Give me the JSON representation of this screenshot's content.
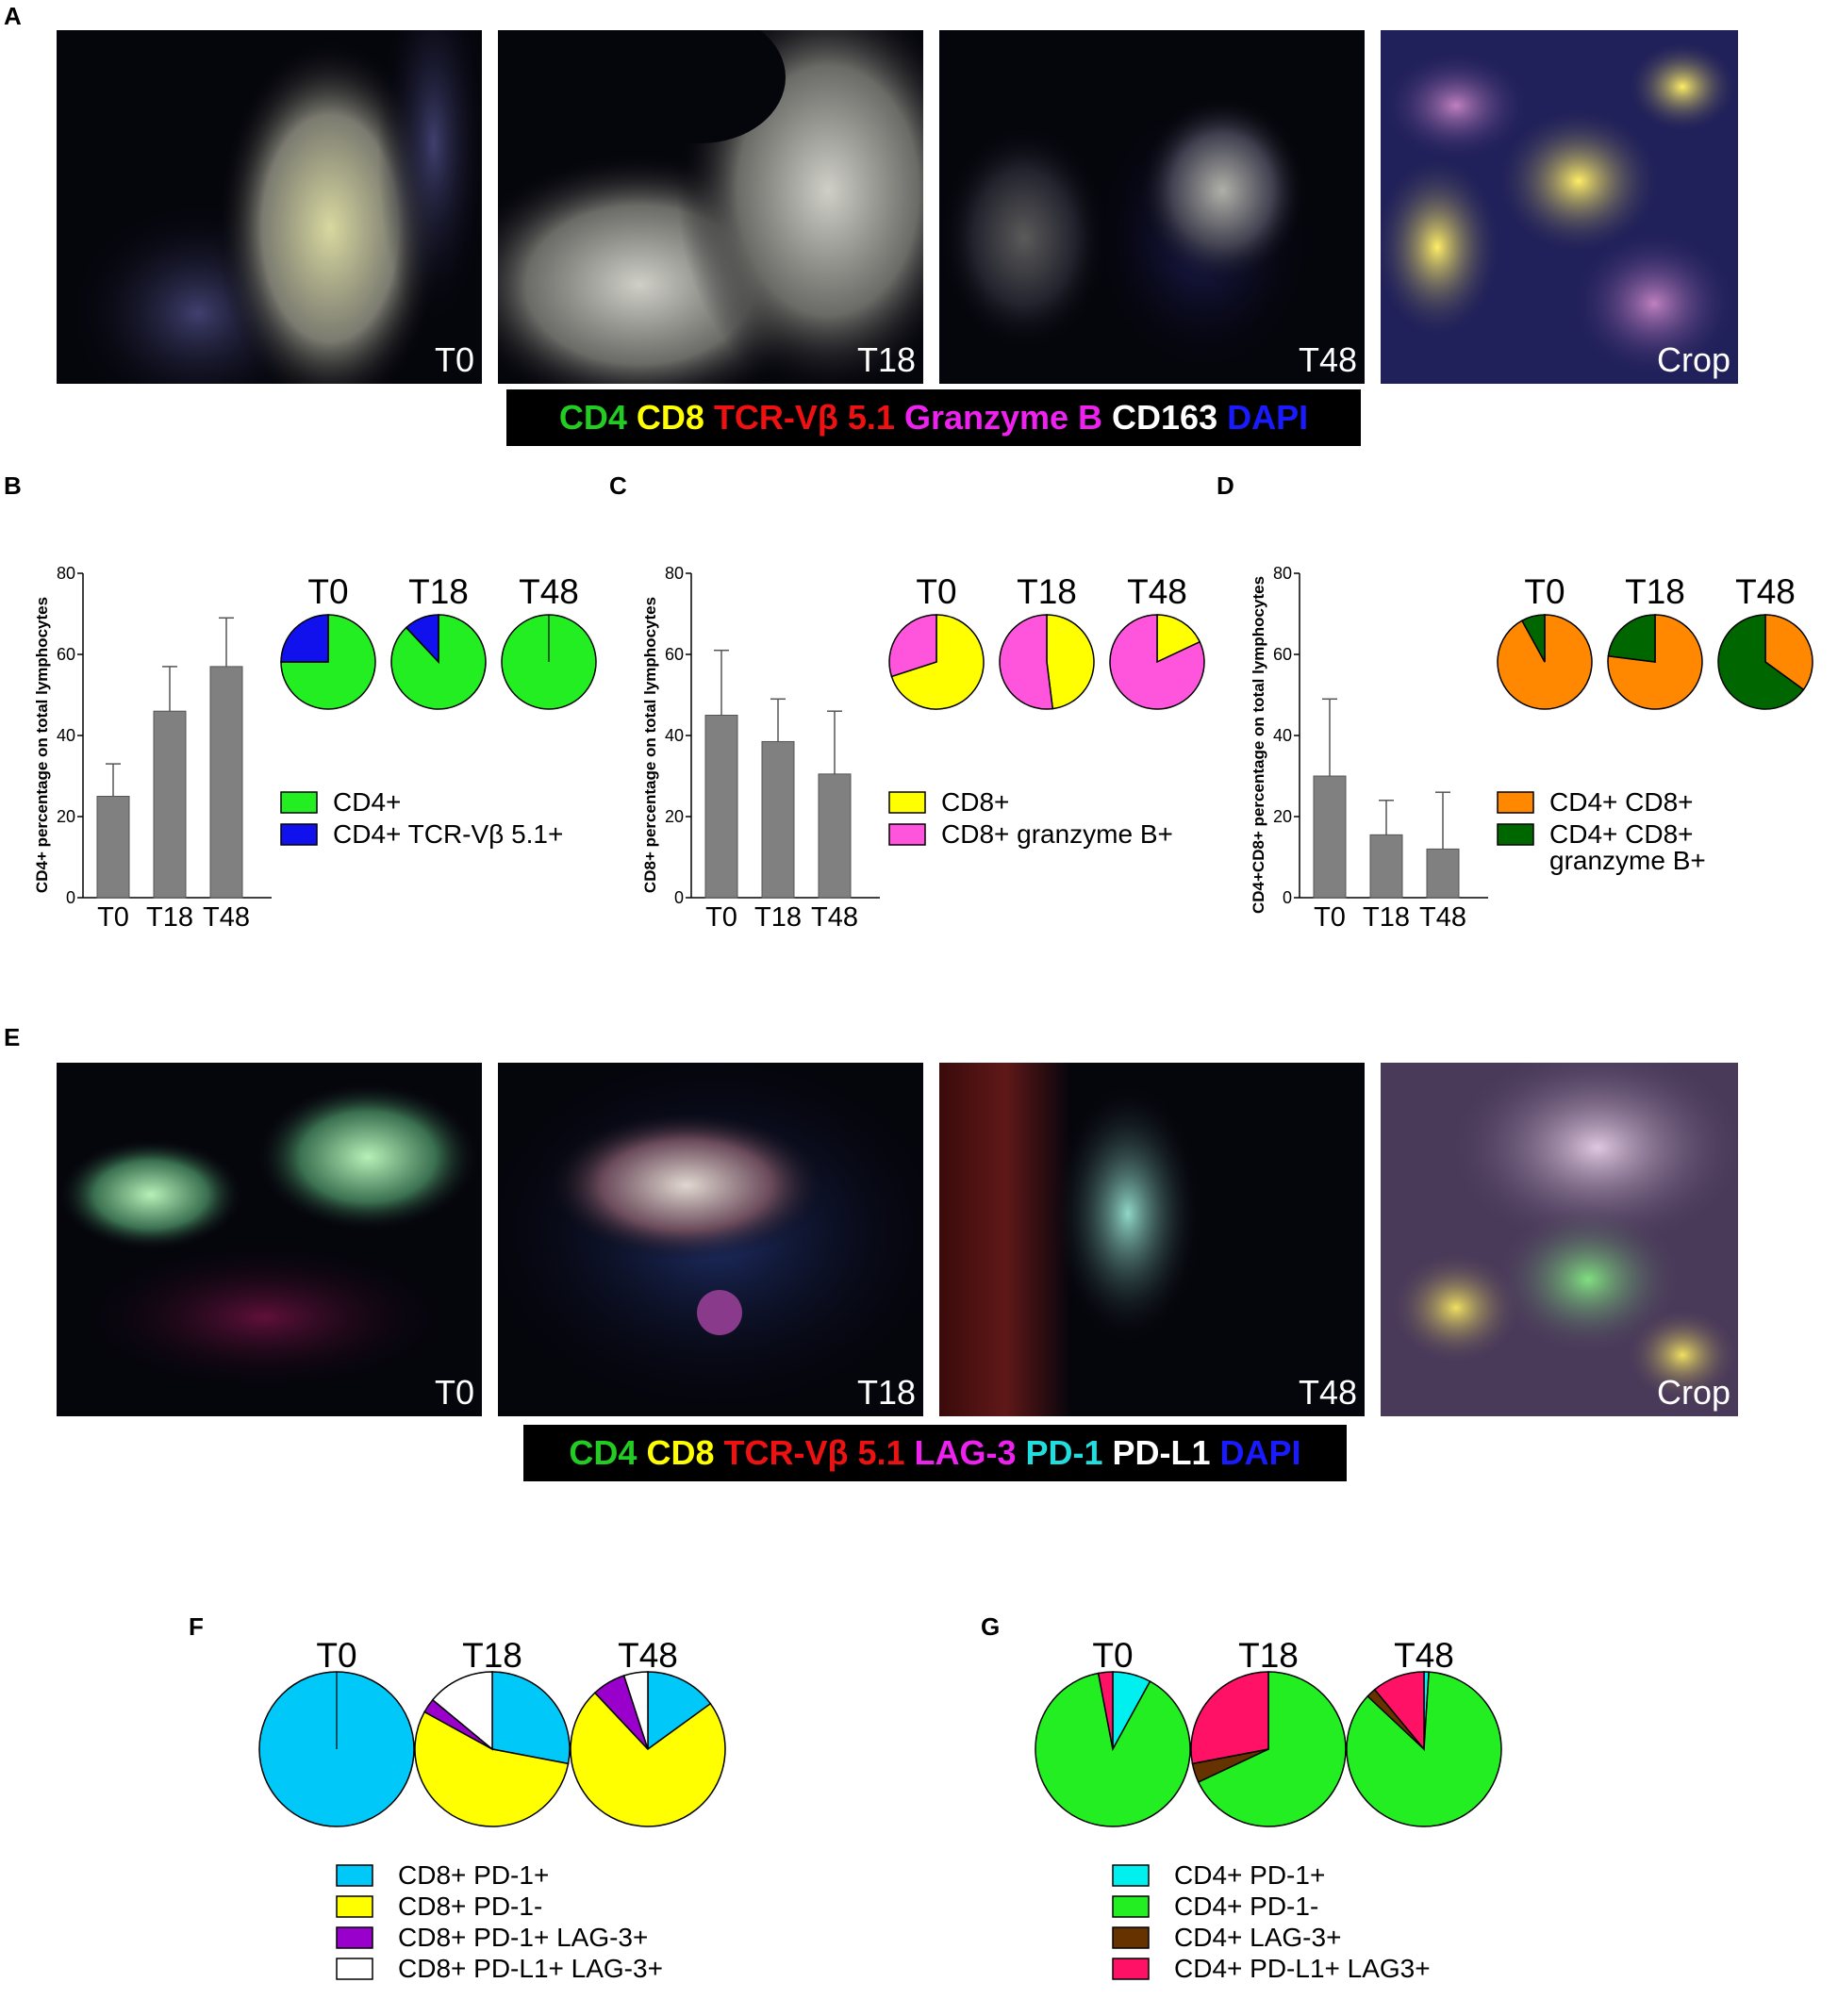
{
  "panels": {
    "A": "A",
    "B": "B",
    "C": "C",
    "D": "D",
    "E": "E",
    "F": "F",
    "G": "G"
  },
  "micrographs_A": [
    {
      "label": "T0"
    },
    {
      "label": "T18"
    },
    {
      "label": "T48"
    },
    {
      "label": "Crop"
    }
  ],
  "micrographs_E": [
    {
      "label": "T0"
    },
    {
      "label": "T18"
    },
    {
      "label": "T48"
    },
    {
      "label": "Crop"
    }
  ],
  "legend_A": [
    {
      "text": "CD4",
      "color": "#22cc22"
    },
    {
      "text": "CD8",
      "color": "#ffff00"
    },
    {
      "text": "TCR-Vβ 5.1",
      "color": "#ee1111"
    },
    {
      "text": "Granzyme B",
      "color": "#ee22ee"
    },
    {
      "text": "CD163",
      "color": "#ffffff"
    },
    {
      "text": "DAPI",
      "color": "#1a1aff"
    }
  ],
  "legend_E": [
    {
      "text": "CD4",
      "color": "#22cc22"
    },
    {
      "text": "CD8",
      "color": "#ffff00"
    },
    {
      "text": "TCR-Vβ 5.1",
      "color": "#ee1111"
    },
    {
      "text": "LAG-3",
      "color": "#ee22ee"
    },
    {
      "text": "PD-1",
      "color": "#22dddd"
    },
    {
      "text": "PD-L1",
      "color": "#ffffff"
    },
    {
      "text": "DAPI",
      "color": "#1a1aff"
    }
  ],
  "chart_data": [
    {
      "panel": "B",
      "type": "bar",
      "ylabel": "CD4+ percentage on total lymphocytes",
      "categories": [
        "T0",
        "T18",
        "T48"
      ],
      "values": [
        25,
        46,
        57
      ],
      "errors": [
        8,
        11,
        12
      ],
      "yticks": [
        0,
        20,
        40,
        60,
        80
      ],
      "ylim": [
        0,
        80
      ],
      "bar_color": "#808080",
      "pies": {
        "titles": [
          "T0",
          "T18",
          "T48"
        ],
        "series": [
          {
            "name": "CD4+",
            "color": "#22ee22"
          },
          {
            "name": "CD4+ TCR-Vβ 5.1+",
            "color": "#1111ee"
          }
        ],
        "values": [
          [
            75,
            25
          ],
          [
            88,
            12
          ],
          [
            100,
            0
          ]
        ]
      },
      "legend_lines": [
        [
          "CD4+"
        ],
        [
          "CD4+ TCR-Vβ 5.1+"
        ]
      ]
    },
    {
      "panel": "C",
      "type": "bar",
      "ylabel": "CD8+ percentage on total lymphocytes",
      "categories": [
        "T0",
        "T18",
        "T48"
      ],
      "values": [
        45,
        38.5,
        30.5
      ],
      "errors": [
        16,
        10.5,
        15.5
      ],
      "yticks": [
        0,
        20,
        40,
        60,
        80
      ],
      "ylim": [
        0,
        80
      ],
      "bar_color": "#808080",
      "pies": {
        "titles": [
          "T0",
          "T18",
          "T48"
        ],
        "series": [
          {
            "name": "CD8+",
            "color": "#ffff00"
          },
          {
            "name": "CD8+ granzyme B+",
            "color": "#ff55dd"
          }
        ],
        "values": [
          [
            70,
            30
          ],
          [
            48,
            52
          ],
          [
            18,
            82
          ]
        ]
      },
      "legend_lines": [
        [
          "CD8+"
        ],
        [
          "CD8+ granzyme B+"
        ]
      ]
    },
    {
      "panel": "D",
      "type": "bar",
      "ylabel": "CD4+CD8+ percentage on total lymphocytes",
      "categories": [
        "T0",
        "T18",
        "T48"
      ],
      "values": [
        30,
        15.5,
        12
      ],
      "errors": [
        19,
        8.5,
        14
      ],
      "yticks": [
        0,
        20,
        40,
        60,
        80
      ],
      "ylim": [
        0,
        80
      ],
      "bar_color": "#808080",
      "pies": {
        "titles": [
          "T0",
          "T18",
          "T48"
        ],
        "series": [
          {
            "name": "CD4+ CD8+",
            "color": "#ff8800"
          },
          {
            "name": "CD4+ CD8+ granzyme B+",
            "color": "#006600"
          }
        ],
        "values": [
          [
            92,
            8
          ],
          [
            77,
            23
          ],
          [
            35,
            65
          ]
        ]
      },
      "legend_lines": [
        [
          "CD4+ CD8+"
        ],
        [
          "CD4+ CD8+",
          "granzyme B+"
        ]
      ]
    },
    {
      "panel": "F",
      "type": "pie",
      "titles": [
        "T0",
        "T18",
        "T48"
      ],
      "series": [
        {
          "name": "CD8+ PD-1+",
          "color": "#00c8f8"
        },
        {
          "name": "CD8+ PD-1-",
          "color": "#ffff00"
        },
        {
          "name": "CD8+ PD-1+ LAG-3+",
          "color": "#9900cc"
        },
        {
          "name": "CD8+ PD-L1+ LAG-3+",
          "color": "#ffffff"
        }
      ],
      "values": [
        [
          100,
          0,
          0,
          0
        ],
        [
          28,
          55,
          3,
          14
        ],
        [
          15,
          73,
          7,
          5
        ]
      ]
    },
    {
      "panel": "G",
      "type": "pie",
      "titles": [
        "T0",
        "T18",
        "T48"
      ],
      "series": [
        {
          "name": "CD4+ PD-1+",
          "color": "#00f0f0"
        },
        {
          "name": "CD4+ PD-1-",
          "color": "#22ee22"
        },
        {
          "name": "CD4+ LAG-3+",
          "color": "#663300"
        },
        {
          "name": "CD4+ PD-L1+ LAG3+",
          "color": "#ff1166"
        }
      ],
      "values": [
        [
          8,
          89,
          0,
          3
        ],
        [
          0,
          68,
          4,
          28
        ],
        [
          1,
          86,
          2,
          11
        ]
      ]
    }
  ]
}
